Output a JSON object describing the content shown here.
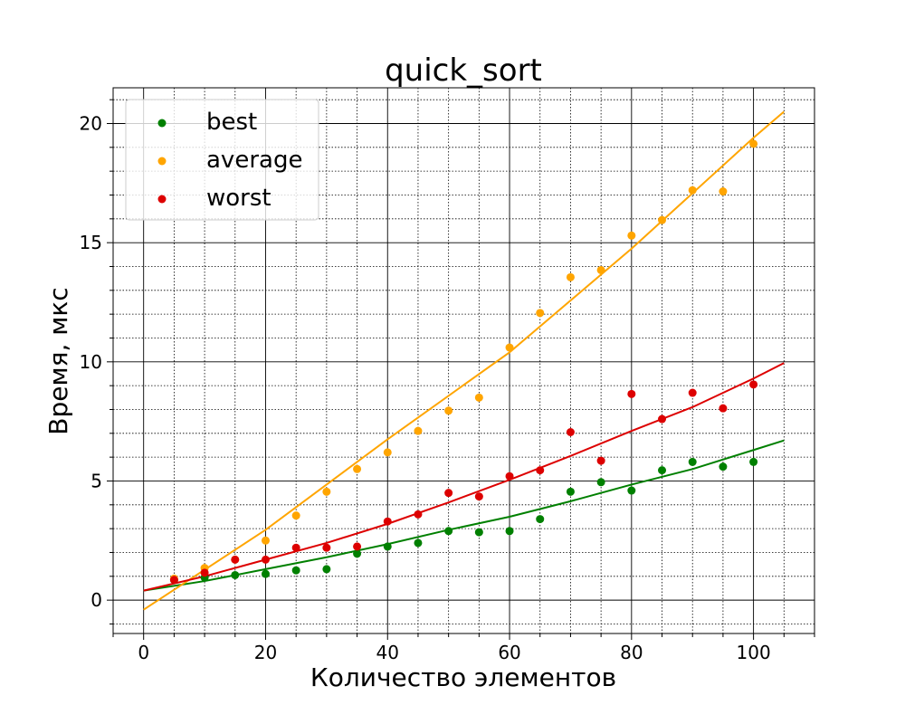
{
  "chart_data": {
    "type": "scatter",
    "title": "quick_sort",
    "xlabel": "Количество элементов",
    "ylabel": "Время, мкс",
    "xlim": [
      -5,
      110
    ],
    "ylim": [
      -1.4,
      21.5
    ],
    "x_ticks": [
      0,
      20,
      40,
      60,
      80,
      100
    ],
    "y_ticks": [
      0,
      5,
      10,
      15,
      20
    ],
    "x_tick_labels": [
      "0",
      "20",
      "40",
      "60",
      "80",
      "100"
    ],
    "y_tick_labels": [
      "0",
      "5",
      "10",
      "15",
      "20"
    ],
    "grid": {
      "major": true,
      "minor": true
    },
    "legend_position": "top-left",
    "x": [
      5,
      10,
      15,
      20,
      25,
      30,
      35,
      40,
      45,
      50,
      55,
      60,
      65,
      70,
      75,
      80,
      85,
      90,
      95,
      100
    ],
    "series": [
      {
        "name": "best",
        "color": "#008000",
        "values": [
          0.85,
          0.95,
          1.05,
          1.1,
          1.25,
          1.3,
          1.95,
          2.25,
          2.4,
          2.9,
          2.85,
          2.9,
          3.4,
          4.55,
          4.95,
          4.6,
          5.45,
          5.8,
          5.6,
          5.8
        ],
        "trend_x": [
          0,
          10,
          20,
          30,
          40,
          50,
          60,
          70,
          80,
          90,
          100,
          105
        ],
        "trend_y": [
          0.4,
          0.8,
          1.3,
          1.8,
          2.35,
          2.95,
          3.5,
          4.15,
          4.85,
          5.5,
          6.3,
          6.7
        ]
      },
      {
        "name": "average",
        "color": "#ffa500",
        "values": [
          0.9,
          1.35,
          1.7,
          2.5,
          3.55,
          4.55,
          5.5,
          6.2,
          7.1,
          7.95,
          8.5,
          10.6,
          12.05,
          13.55,
          13.85,
          15.3,
          15.95,
          17.2,
          17.15,
          19.15
        ],
        "trend_x": [
          0,
          20,
          40,
          60,
          80,
          100,
          105
        ],
        "trend_y": [
          -0.4,
          2.95,
          6.75,
          10.4,
          14.75,
          19.4,
          20.5
        ]
      },
      {
        "name": "worst",
        "color": "#dd0000",
        "values": [
          0.85,
          1.15,
          1.7,
          1.7,
          2.2,
          2.2,
          2.25,
          3.3,
          3.6,
          4.5,
          4.35,
          5.2,
          5.45,
          7.05,
          5.85,
          8.65,
          7.6,
          8.7,
          8.05,
          9.05
        ],
        "trend_x": [
          0,
          10,
          20,
          30,
          40,
          50,
          60,
          70,
          80,
          90,
          100,
          105
        ],
        "trend_y": [
          0.4,
          1.0,
          1.7,
          2.4,
          3.2,
          4.1,
          5.05,
          6.05,
          7.1,
          8.1,
          9.3,
          9.95
        ]
      }
    ]
  }
}
